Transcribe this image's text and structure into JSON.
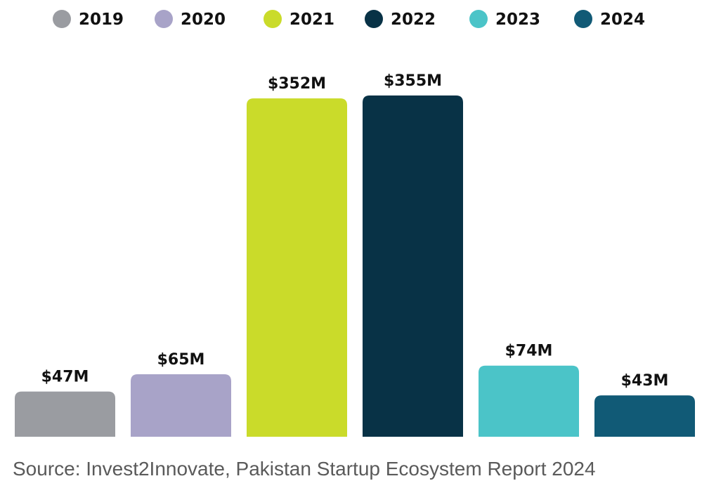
{
  "chart_data": {
    "type": "bar",
    "categories": [
      "2019",
      "2020",
      "2021",
      "2022",
      "2023",
      "2024"
    ],
    "values": [
      47,
      65,
      352,
      355,
      74,
      43
    ],
    "value_labels": [
      "$47M",
      "$65M",
      "$352M",
      "$355M",
      "$74M",
      "$43M"
    ],
    "colors": [
      "#9a9ca1",
      "#a8a3c8",
      "#cadb2a",
      "#083246",
      "#4bc4c8",
      "#115a76"
    ],
    "legend_position": "top",
    "grid": false,
    "ylim": [
      0,
      355
    ]
  },
  "source": "Source: Invest2Innovate, Pakistan Startup Ecosystem Report 2024"
}
